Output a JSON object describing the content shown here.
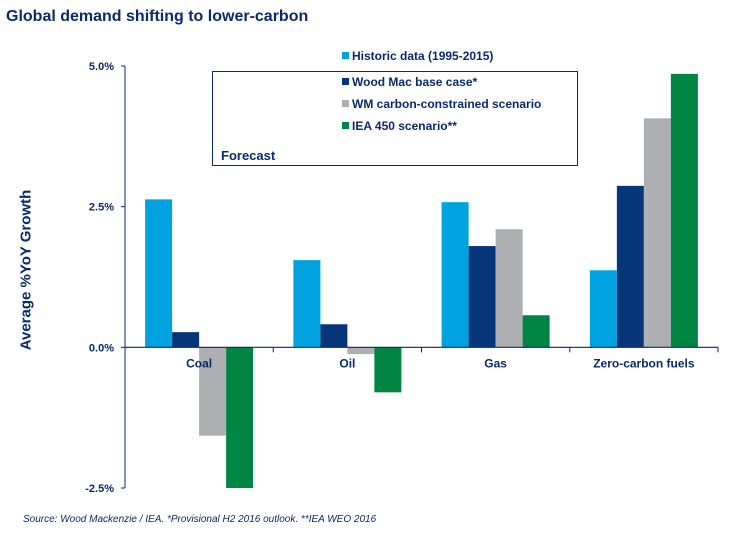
{
  "chart_data": {
    "type": "bar",
    "title": "Global demand shifting to lower-carbon",
    "xlabel": "",
    "ylabel": "Average %YoY Growth",
    "ylim": [
      -2.5,
      5.0
    ],
    "yticks": [
      "5.0%",
      "2.5%",
      "0.0%",
      "-2.5%"
    ],
    "ytick_values": [
      5.0,
      2.5,
      0.0,
      -2.5
    ],
    "categories": [
      "Coal",
      "Oil",
      "Gas",
      "Zero-carbon fuels"
    ],
    "series": [
      {
        "name": "Historic data (1995-2015)",
        "color": "#00a3e0",
        "values": [
          2.63,
          1.55,
          2.58,
          1.37
        ]
      },
      {
        "name": "Wood Mac base case*",
        "color": "#06357a",
        "values": [
          0.27,
          0.41,
          1.8,
          2.87
        ]
      },
      {
        "name": "WM carbon-constrained scenario",
        "color": "#adafb2",
        "values": [
          -1.57,
          -0.12,
          2.1,
          4.07
        ]
      },
      {
        "name": "IEA 450 scenario**",
        "color": "#008542",
        "values": [
          -2.5,
          -0.8,
          0.57,
          4.86
        ]
      }
    ],
    "legend_position": "top-right",
    "legend_box_label": "Forecast",
    "grid": false,
    "source_note": "Source: Wood Mackenzie / IEA. *Provisional H2 2016 outlook. **IEA WEO 2016"
  },
  "colors": {
    "text": "#0a2a6b",
    "axis": "#0a2a6b"
  }
}
